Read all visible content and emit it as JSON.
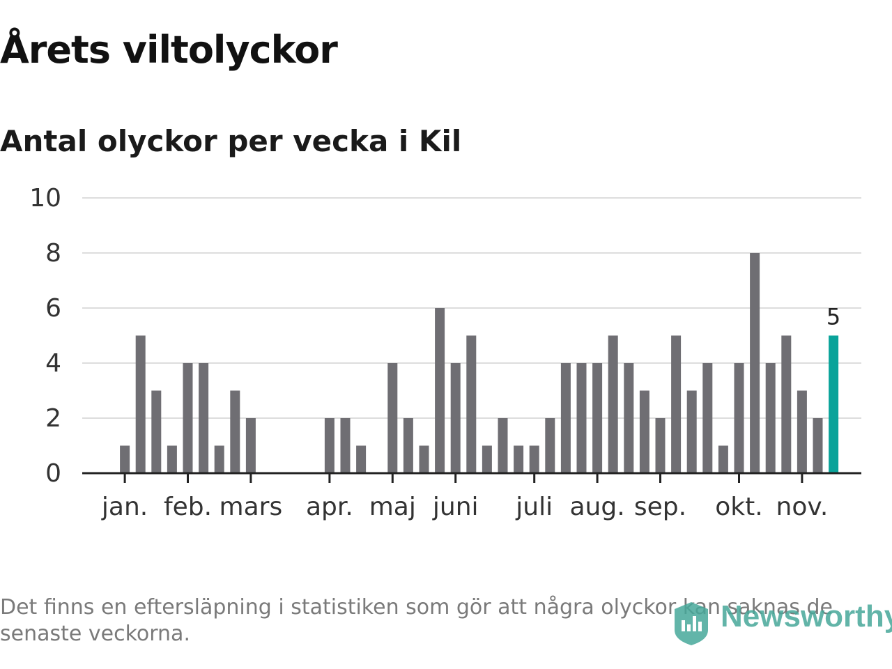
{
  "title": "Årets viltolyckor",
  "subtitle": "Antal olyckor per vecka i Kil",
  "footnote": "Det finns en eftersläpning i statistiken som gör att några olyckor kan saknas de senaste veckorna.",
  "logo": {
    "text": "Newsworthy",
    "icon": "newsworthy-logo-icon"
  },
  "colors": {
    "bar": "#6f6e73",
    "highlight": "#0aa39a",
    "grid": "#dddddd",
    "axis": "#222222"
  },
  "chart_data": {
    "type": "bar",
    "title": "Antal olyckor per vecka i Kil",
    "ylim": [
      0,
      10
    ],
    "yticks": [
      0,
      2,
      4,
      6,
      8,
      10
    ],
    "grid": true,
    "weeks": 47,
    "values": [
      null,
      1,
      5,
      3,
      1,
      4,
      4,
      1,
      3,
      2,
      0,
      0,
      0,
      0,
      2,
      2,
      1,
      0,
      4,
      2,
      1,
      6,
      4,
      5,
      1,
      2,
      1,
      1,
      2,
      4,
      4,
      4,
      5,
      4,
      3,
      2,
      5,
      3,
      4,
      1,
      4,
      8,
      4,
      5,
      3,
      2,
      5
    ],
    "highlight_index": 46,
    "highlight_label": "5",
    "months": [
      {
        "label": "jan.",
        "week": 1
      },
      {
        "label": "feb.",
        "week": 5
      },
      {
        "label": "mars",
        "week": 9
      },
      {
        "label": "apr.",
        "week": 14
      },
      {
        "label": "maj",
        "week": 18
      },
      {
        "label": "juni",
        "week": 22
      },
      {
        "label": "juli",
        "week": 27
      },
      {
        "label": "aug.",
        "week": 31
      },
      {
        "label": "sep.",
        "week": 35
      },
      {
        "label": "okt.",
        "week": 40
      },
      {
        "label": "nov.",
        "week": 44
      }
    ]
  }
}
